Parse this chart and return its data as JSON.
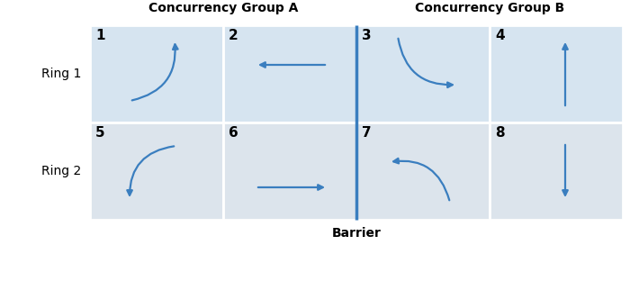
{
  "title_A": "Concurrency Group A",
  "title_B": "Concurrency Group B",
  "ring1_label": "Ring 1",
  "ring2_label": "Ring 2",
  "barrier_label": "Barrier",
  "phase_labels": [
    "1",
    "2",
    "3",
    "4",
    "5",
    "6",
    "7",
    "8"
  ],
  "bg_color_ring1": "#d6e4f0",
  "bg_color_ring2": "#dce4ec",
  "barrier_color": "#3a7ebf",
  "arrow_color": "#3a7ebf",
  "title_fontsize": 10,
  "ring_label_fontsize": 10,
  "phase_num_fontsize": 11,
  "barrier_fontsize": 10,
  "lw_arrow": 1.6,
  "lw_barrier": 2.5
}
